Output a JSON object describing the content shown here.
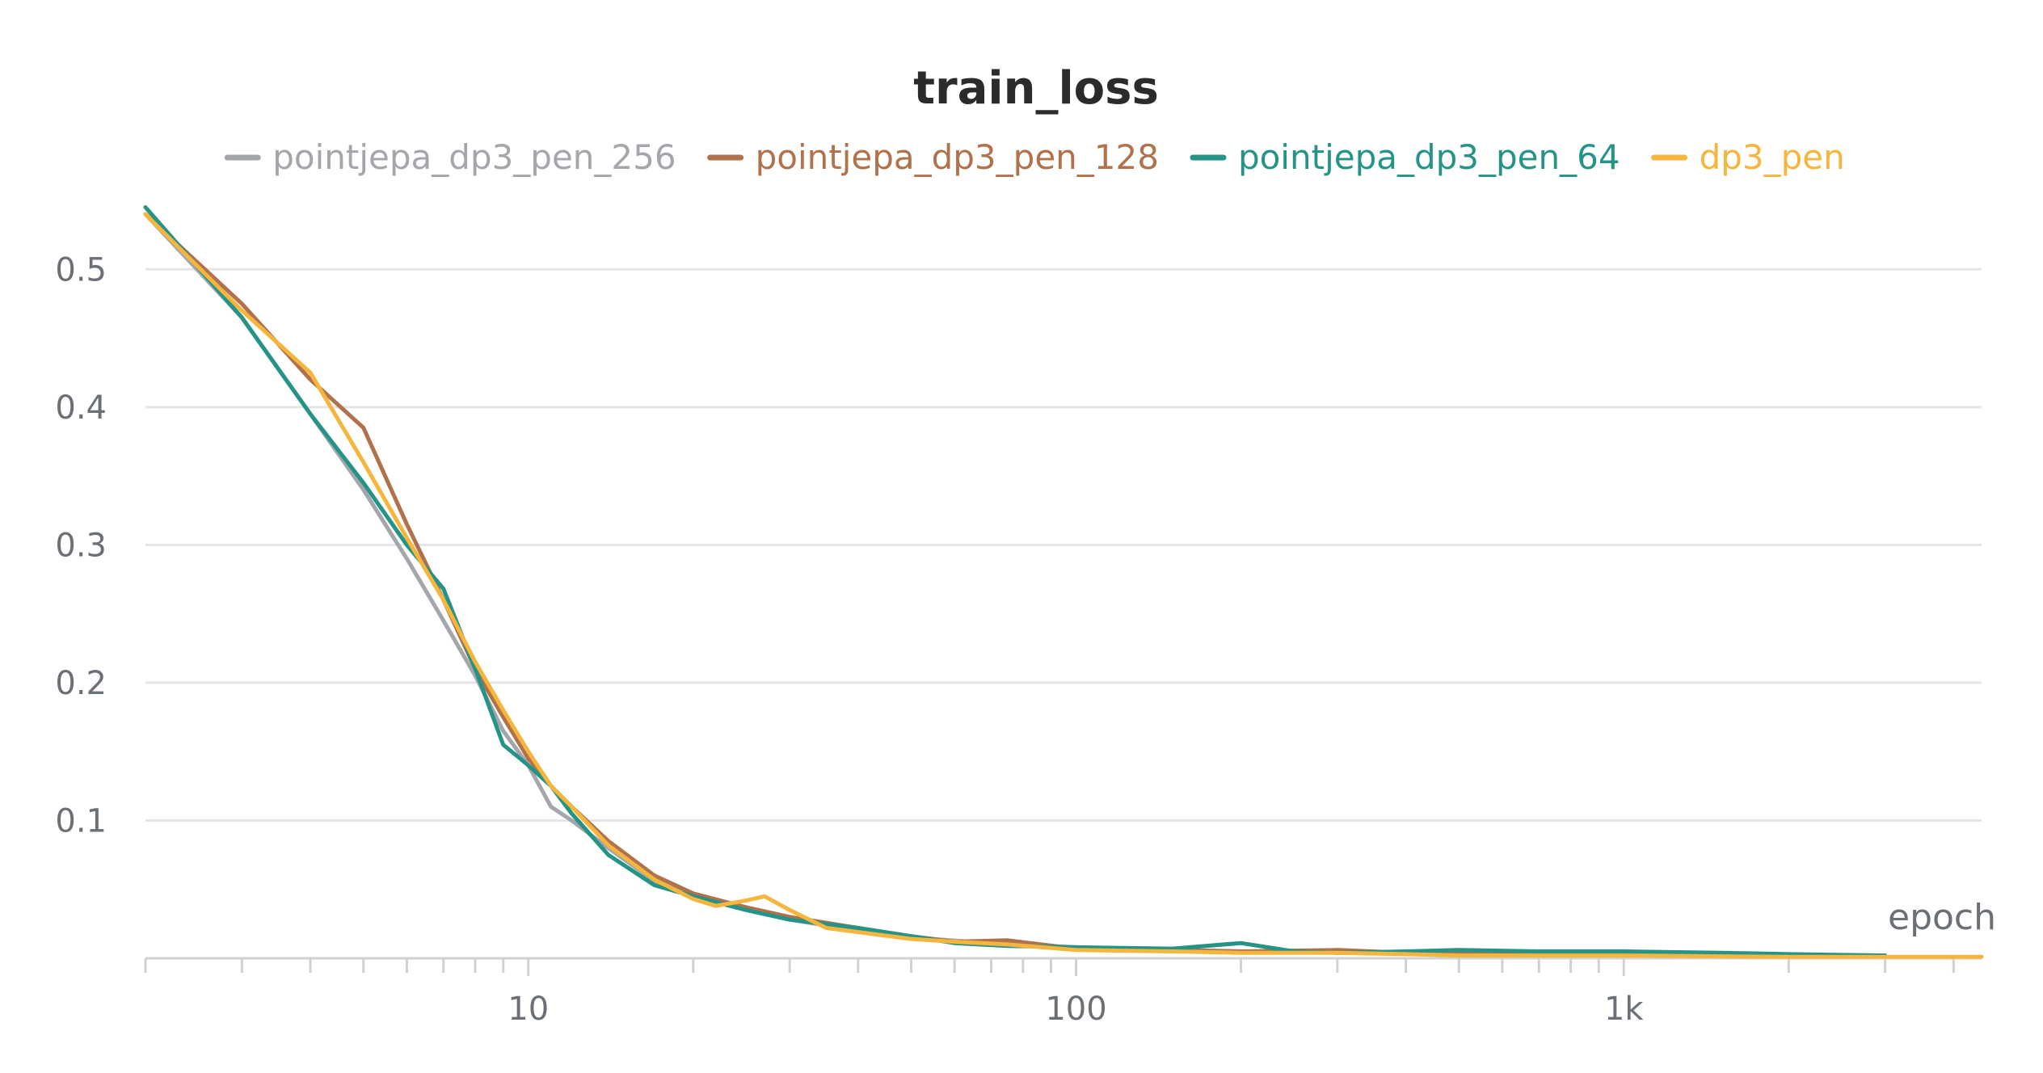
{
  "chart_data": {
    "type": "line",
    "title": "train_loss",
    "xlabel": "epoch",
    "ylabel": "",
    "x_scale": "log",
    "xlim": [
      2,
      4500
    ],
    "ylim": [
      0,
      0.55
    ],
    "x_ticks": [
      {
        "value": 10,
        "label": "10"
      },
      {
        "value": 100,
        "label": "100"
      },
      {
        "value": 1000,
        "label": "1k"
      }
    ],
    "y_ticks": [
      {
        "value": 0.1,
        "label": "0.1"
      },
      {
        "value": 0.2,
        "label": "0.2"
      },
      {
        "value": 0.3,
        "label": "0.3"
      },
      {
        "value": 0.4,
        "label": "0.4"
      },
      {
        "value": 0.5,
        "label": "0.5"
      }
    ],
    "grid": true,
    "legend_position": "top",
    "series": [
      {
        "name": "pointjepa_dp3_pen_256",
        "color": "#a3a6ab",
        "x": [
          2,
          3,
          4,
          5,
          6,
          7,
          8,
          9,
          10,
          11,
          12,
          14,
          17,
          20,
          25,
          30,
          40,
          50,
          70,
          100,
          150,
          200,
          300,
          500,
          700,
          1000,
          2000,
          3000
        ],
        "y": [
          0.54,
          0.465,
          0.395,
          0.34,
          0.29,
          0.245,
          0.205,
          0.165,
          0.14,
          0.11,
          0.1,
          0.08,
          0.056,
          0.045,
          0.035,
          0.028,
          0.02,
          0.015,
          0.011,
          0.008,
          0.006,
          0.005,
          0.004,
          0.003,
          0.003,
          0.003,
          0.002,
          0.002
        ]
      },
      {
        "name": "pointjepa_dp3_pen_128",
        "color": "#b0714b",
        "x": [
          2,
          3,
          4,
          5,
          6,
          7,
          8,
          9,
          10,
          11,
          12,
          14,
          17,
          20,
          25,
          30,
          40,
          50,
          60,
          75,
          100,
          150,
          200,
          300,
          400,
          500,
          700,
          1000,
          2000,
          3000
        ],
        "y": [
          0.54,
          0.475,
          0.42,
          0.385,
          0.315,
          0.26,
          0.21,
          0.175,
          0.145,
          0.125,
          0.11,
          0.085,
          0.06,
          0.047,
          0.037,
          0.03,
          0.022,
          0.016,
          0.012,
          0.013,
          0.007,
          0.006,
          0.005,
          0.006,
          0.004,
          0.004,
          0.004,
          0.003,
          0.002,
          0.002
        ]
      },
      {
        "name": "pointjepa_dp3_pen_64",
        "color": "#259487",
        "x": [
          2,
          3,
          4,
          5,
          6,
          7,
          8,
          9,
          10,
          11,
          12,
          14,
          17,
          20,
          25,
          30,
          40,
          50,
          60,
          75,
          100,
          150,
          200,
          250,
          300,
          400,
          500,
          700,
          1000,
          1500,
          2000,
          3000
        ],
        "y": [
          0.545,
          0.465,
          0.395,
          0.345,
          0.3,
          0.268,
          0.21,
          0.155,
          0.14,
          0.125,
          0.105,
          0.075,
          0.053,
          0.045,
          0.035,
          0.028,
          0.022,
          0.016,
          0.011,
          0.009,
          0.008,
          0.007,
          0.011,
          0.005,
          0.004,
          0.005,
          0.006,
          0.005,
          0.005,
          0.004,
          0.003,
          0.002
        ]
      },
      {
        "name": "dp3_pen",
        "color": "#f6b63d",
        "x": [
          2,
          3,
          4,
          5,
          6,
          7,
          8,
          9,
          10,
          11,
          12,
          14,
          17,
          20,
          22,
          25,
          27,
          30,
          35,
          40,
          50,
          60,
          75,
          100,
          150,
          200,
          300,
          400,
          500,
          700,
          1000,
          2000,
          3000,
          4500
        ],
        "y": [
          0.54,
          0.47,
          0.425,
          0.36,
          0.305,
          0.26,
          0.215,
          0.18,
          0.15,
          0.125,
          0.11,
          0.082,
          0.057,
          0.043,
          0.038,
          0.042,
          0.045,
          0.035,
          0.022,
          0.019,
          0.014,
          0.012,
          0.01,
          0.006,
          0.005,
          0.004,
          0.004,
          0.003,
          0.002,
          0.002,
          0.002,
          0.001,
          0.001,
          0.001
        ]
      }
    ]
  }
}
